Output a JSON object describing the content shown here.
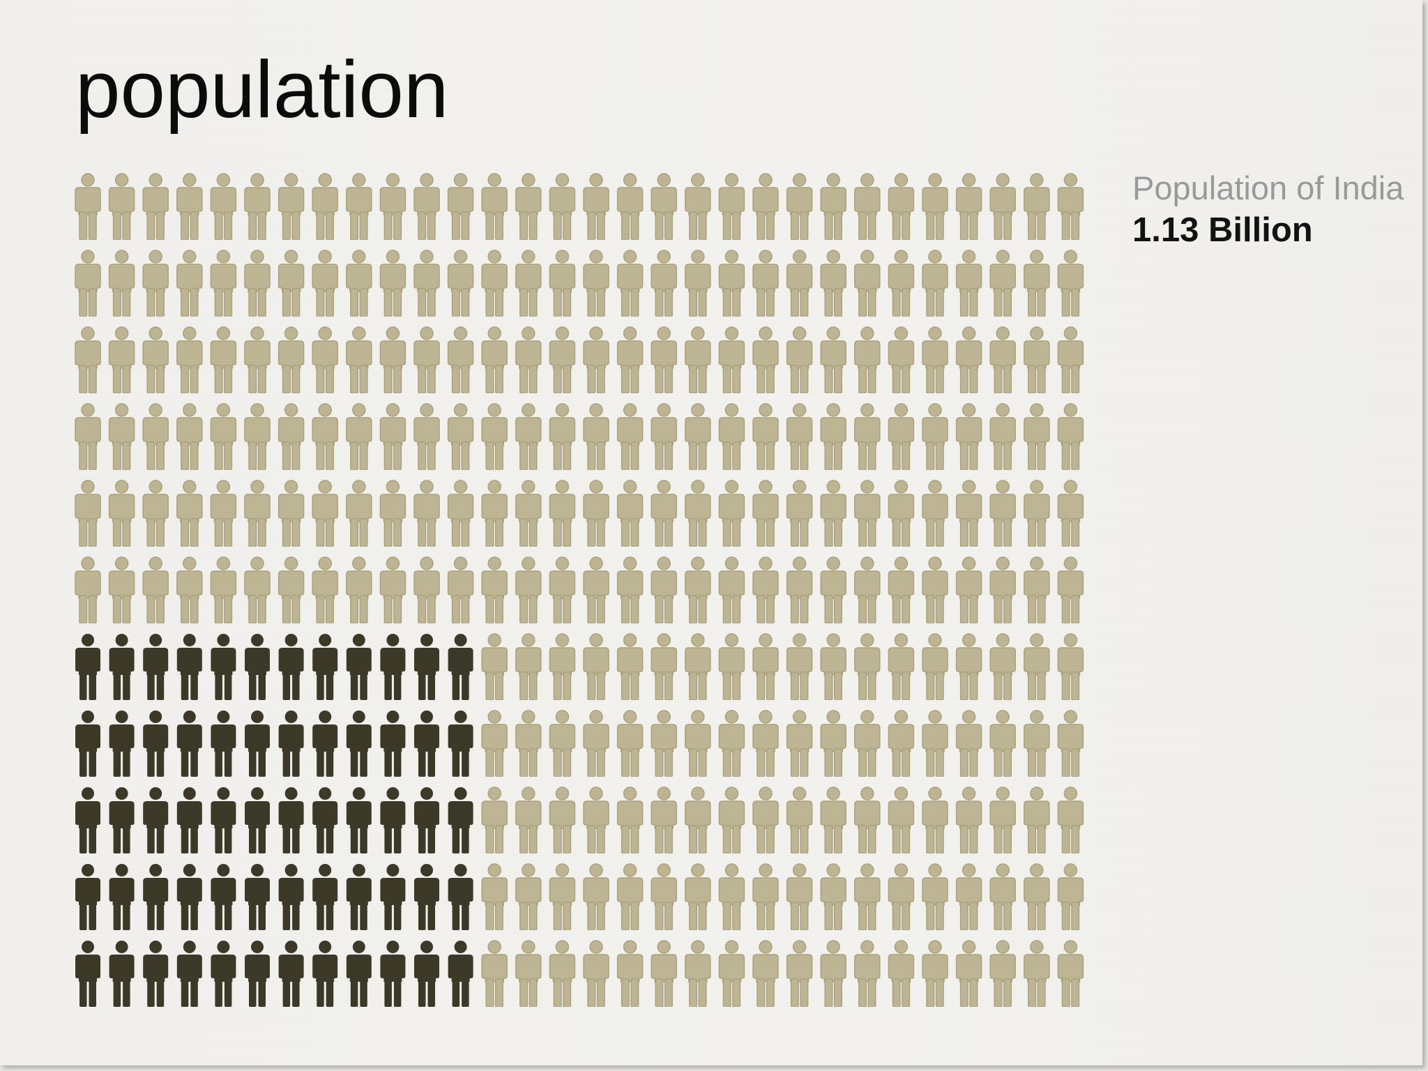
{
  "title": "population",
  "legend": {
    "label": "Population of India",
    "value": "1.13 Billion"
  },
  "colors": {
    "highlight": "#3d3929",
    "base": "#bdb593",
    "base_outline": "#aaa27f"
  },
  "chart_data": {
    "type": "pictograph",
    "unit_icon": "person-icon",
    "rows": 11,
    "columns": 30,
    "highlighted_rows": [
      6,
      7,
      8,
      9,
      10
    ],
    "highlighted_columns_per_row": 12,
    "total_icons": 330,
    "highlighted_icons": 60,
    "series": [
      {
        "name": "Population of India",
        "value": "1.13 Billion",
        "icons": 60
      },
      {
        "icons": 270
      }
    ]
  }
}
